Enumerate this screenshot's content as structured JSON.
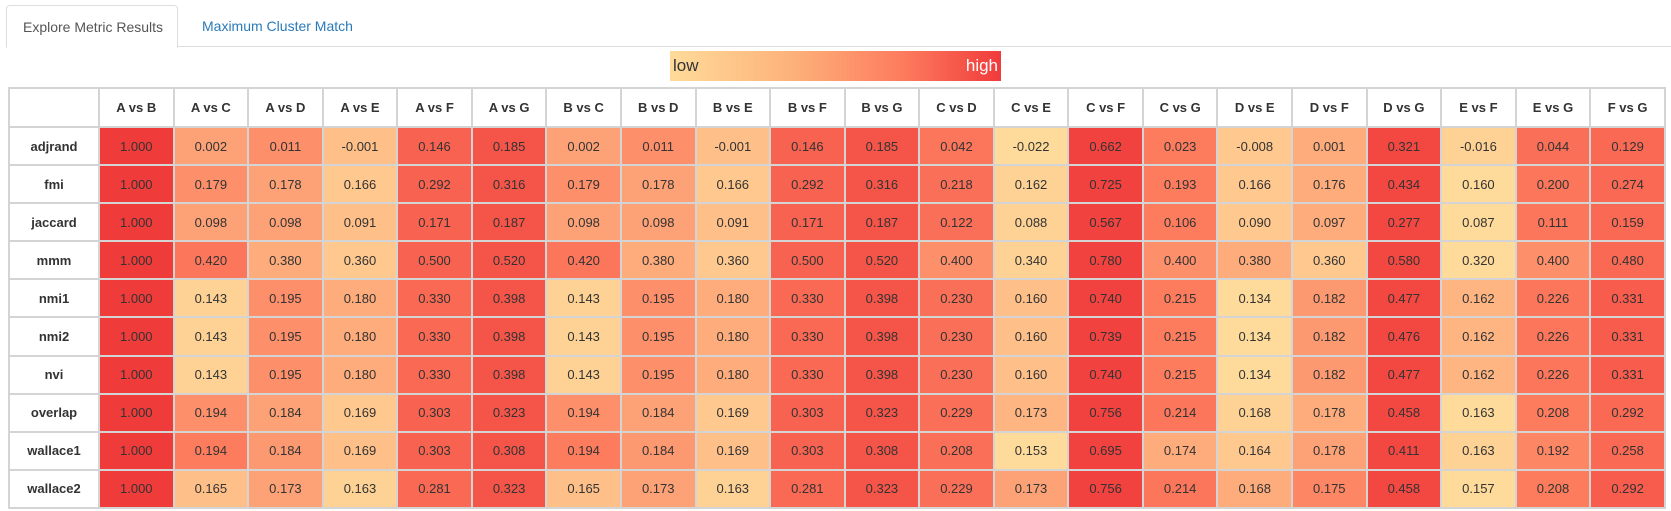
{
  "tabs": [
    {
      "label": "Explore Metric Results",
      "active": true
    },
    {
      "label": "Maximum Cluster Match",
      "active": false
    }
  ],
  "legend": {
    "low": "low",
    "high": "high",
    "colors": [
      "#fedb9a",
      "#fd7c5e",
      "#f03b3b"
    ]
  },
  "table": {
    "columns": [
      "A vs B",
      "A vs C",
      "A vs D",
      "A vs E",
      "A vs F",
      "A vs G",
      "B vs C",
      "B vs D",
      "B vs E",
      "B vs F",
      "B vs G",
      "C vs D",
      "C vs E",
      "C vs F",
      "C vs G",
      "D vs E",
      "D vs F",
      "D vs G",
      "E vs F",
      "E vs G",
      "F vs G"
    ],
    "rows": [
      {
        "label": "adjrand",
        "values": [
          "1.000",
          "0.002",
          "0.011",
          "-0.001",
          "0.146",
          "0.185",
          "0.002",
          "0.011",
          "-0.001",
          "0.146",
          "0.185",
          "0.042",
          "-0.022",
          "0.662",
          "0.023",
          "-0.008",
          "0.001",
          "0.321",
          "-0.016",
          "0.044",
          "0.129"
        ]
      },
      {
        "label": "fmi",
        "values": [
          "1.000",
          "0.179",
          "0.178",
          "0.166",
          "0.292",
          "0.316",
          "0.179",
          "0.178",
          "0.166",
          "0.292",
          "0.316",
          "0.218",
          "0.162",
          "0.725",
          "0.193",
          "0.166",
          "0.176",
          "0.434",
          "0.160",
          "0.200",
          "0.274"
        ]
      },
      {
        "label": "jaccard",
        "values": [
          "1.000",
          "0.098",
          "0.098",
          "0.091",
          "0.171",
          "0.187",
          "0.098",
          "0.098",
          "0.091",
          "0.171",
          "0.187",
          "0.122",
          "0.088",
          "0.567",
          "0.106",
          "0.090",
          "0.097",
          "0.277",
          "0.087",
          "0.111",
          "0.159"
        ]
      },
      {
        "label": "mmm",
        "values": [
          "1.000",
          "0.420",
          "0.380",
          "0.360",
          "0.500",
          "0.520",
          "0.420",
          "0.380",
          "0.360",
          "0.500",
          "0.520",
          "0.400",
          "0.340",
          "0.780",
          "0.400",
          "0.380",
          "0.360",
          "0.580",
          "0.320",
          "0.400",
          "0.480"
        ]
      },
      {
        "label": "nmi1",
        "values": [
          "1.000",
          "0.143",
          "0.195",
          "0.180",
          "0.330",
          "0.398",
          "0.143",
          "0.195",
          "0.180",
          "0.330",
          "0.398",
          "0.230",
          "0.160",
          "0.740",
          "0.215",
          "0.134",
          "0.182",
          "0.477",
          "0.162",
          "0.226",
          "0.331"
        ]
      },
      {
        "label": "nmi2",
        "values": [
          "1.000",
          "0.143",
          "0.195",
          "0.180",
          "0.330",
          "0.398",
          "0.143",
          "0.195",
          "0.180",
          "0.330",
          "0.398",
          "0.230",
          "0.160",
          "0.739",
          "0.215",
          "0.134",
          "0.182",
          "0.476",
          "0.162",
          "0.226",
          "0.331"
        ]
      },
      {
        "label": "nvi",
        "values": [
          "1.000",
          "0.143",
          "0.195",
          "0.180",
          "0.330",
          "0.398",
          "0.143",
          "0.195",
          "0.180",
          "0.330",
          "0.398",
          "0.230",
          "0.160",
          "0.740",
          "0.215",
          "0.134",
          "0.182",
          "0.477",
          "0.162",
          "0.226",
          "0.331"
        ]
      },
      {
        "label": "overlap",
        "values": [
          "1.000",
          "0.194",
          "0.184",
          "0.169",
          "0.303",
          "0.323",
          "0.194",
          "0.184",
          "0.169",
          "0.303",
          "0.323",
          "0.229",
          "0.173",
          "0.756",
          "0.214",
          "0.168",
          "0.178",
          "0.458",
          "0.163",
          "0.208",
          "0.292"
        ]
      },
      {
        "label": "wallace1",
        "values": [
          "1.000",
          "0.194",
          "0.184",
          "0.169",
          "0.303",
          "0.308",
          "0.194",
          "0.184",
          "0.169",
          "0.303",
          "0.308",
          "0.208",
          "0.153",
          "0.695",
          "0.174",
          "0.164",
          "0.178",
          "0.411",
          "0.163",
          "0.192",
          "0.258"
        ]
      },
      {
        "label": "wallace2",
        "values": [
          "1.000",
          "0.165",
          "0.173",
          "0.163",
          "0.281",
          "0.323",
          "0.165",
          "0.173",
          "0.163",
          "0.281",
          "0.323",
          "0.229",
          "0.173",
          "0.756",
          "0.214",
          "0.168",
          "0.175",
          "0.458",
          "0.157",
          "0.208",
          "0.292"
        ]
      }
    ]
  }
}
